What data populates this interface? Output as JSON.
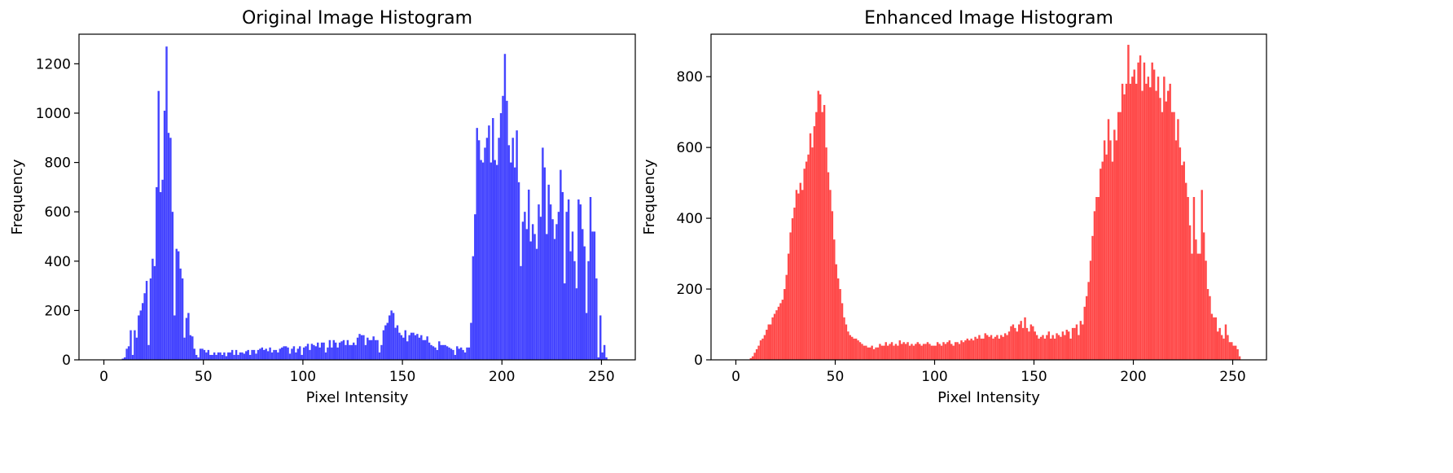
{
  "chart_data": [
    {
      "type": "bar",
      "title": "Original Image Histogram",
      "xlabel": "Pixel Intensity",
      "ylabel": "Frequency",
      "xlim": [
        -12.5,
        267
      ],
      "ylim": [
        0,
        1320
      ],
      "xticks": [
        0,
        50,
        100,
        150,
        200,
        250
      ],
      "yticks": [
        0,
        200,
        400,
        600,
        800,
        1000,
        1200
      ],
      "grid": false,
      "color": "#4444ff",
      "series": [
        {
          "x_start": 0,
          "values": [
            0,
            0,
            0,
            0,
            0,
            0,
            0,
            0,
            0,
            5,
            10,
            45,
            55,
            120,
            20,
            120,
            90,
            180,
            200,
            230,
            270,
            320,
            60,
            330,
            410,
            380,
            700,
            1090,
            680,
            730,
            1010,
            1270,
            920,
            900,
            600,
            180,
            450,
            440,
            370,
            330,
            90,
            170,
            190,
            100,
            95,
            45,
            20,
            10,
            45,
            45,
            40,
            30,
            40,
            20,
            20,
            30,
            20,
            30,
            30,
            20,
            30,
            15,
            30,
            30,
            40,
            20,
            40,
            20,
            30,
            30,
            25,
            35,
            40,
            20,
            40,
            40,
            25,
            40,
            45,
            50,
            40,
            45,
            35,
            50,
            30,
            40,
            40,
            30,
            45,
            50,
            55,
            55,
            50,
            25,
            45,
            55,
            30,
            45,
            55,
            20,
            50,
            55,
            65,
            40,
            65,
            60,
            55,
            70,
            50,
            70,
            70,
            30,
            50,
            80,
            50,
            80,
            70,
            50,
            70,
            75,
            80,
            60,
            80,
            60,
            60,
            70,
            60,
            90,
            105,
            100,
            100,
            60,
            90,
            80,
            80,
            95,
            80,
            80,
            30,
            60,
            120,
            140,
            150,
            180,
            200,
            190,
            130,
            140,
            110,
            100,
            90,
            120,
            75,
            100,
            110,
            110,
            100,
            105,
            90,
            100,
            80,
            80,
            95,
            70,
            60,
            55,
            50,
            40,
            75,
            60,
            60,
            60,
            55,
            50,
            45,
            40,
            20,
            55,
            45,
            50,
            40,
            30,
            50,
            50,
            150,
            420,
            590,
            940,
            890,
            810,
            800,
            860,
            900,
            950,
            800,
            980,
            810,
            790,
            900,
            1000,
            1070,
            1240,
            1050,
            870,
            800,
            900,
            780,
            930,
            720,
            380,
            560,
            600,
            530,
            690,
            480,
            550,
            510,
            450,
            630,
            580,
            860,
            780,
            510,
            710,
            630,
            570,
            490,
            550,
            600,
            770,
            680,
            310,
            600,
            650,
            440,
            520,
            400,
            290,
            650,
            630,
            530,
            460,
            190,
            400,
            660,
            520,
            520,
            330,
            10,
            180,
            30,
            60,
            10,
            0,
            0,
            0,
            0,
            0,
            0,
            0,
            0,
            0,
            0,
            0,
            0,
            0,
            0,
            0,
            0,
            0
          ]
        }
      ]
    },
    {
      "type": "bar",
      "title": "Enhanced Image Histogram",
      "xlabel": "Pixel Intensity",
      "ylabel": "Frequency",
      "xlim": [
        -12.5,
        267
      ],
      "ylim": [
        0,
        920
      ],
      "xticks": [
        0,
        50,
        100,
        150,
        200,
        250
      ],
      "yticks": [
        0,
        200,
        400,
        600,
        800
      ],
      "grid": false,
      "color": "#ff4a4a",
      "series": [
        {
          "x_start": 0,
          "values": [
            0,
            0,
            0,
            0,
            0,
            0,
            0,
            5,
            10,
            20,
            30,
            40,
            55,
            60,
            70,
            85,
            100,
            100,
            120,
            130,
            140,
            150,
            160,
            170,
            200,
            240,
            300,
            360,
            400,
            430,
            480,
            470,
            500,
            480,
            540,
            560,
            580,
            640,
            600,
            660,
            700,
            760,
            750,
            700,
            720,
            600,
            530,
            480,
            420,
            340,
            270,
            230,
            200,
            160,
            120,
            100,
            80,
            70,
            65,
            60,
            60,
            55,
            50,
            45,
            40,
            40,
            35,
            35,
            40,
            30,
            35,
            35,
            45,
            40,
            40,
            50,
            40,
            45,
            50,
            40,
            45,
            40,
            55,
            45,
            50,
            45,
            50,
            40,
            45,
            40,
            45,
            50,
            45,
            40,
            45,
            45,
            50,
            45,
            40,
            40,
            40,
            50,
            45,
            40,
            50,
            45,
            50,
            55,
            45,
            40,
            50,
            50,
            45,
            55,
            50,
            55,
            60,
            55,
            60,
            55,
            65,
            60,
            70,
            60,
            60,
            75,
            70,
            65,
            70,
            60,
            65,
            70,
            60,
            70,
            65,
            75,
            70,
            80,
            95,
            100,
            90,
            80,
            100,
            110,
            90,
            120,
            90,
            80,
            100,
            95,
            80,
            70,
            60,
            65,
            70,
            60,
            70,
            80,
            60,
            70,
            60,
            75,
            70,
            65,
            80,
            70,
            85,
            80,
            60,
            90,
            90,
            100,
            70,
            110,
            100,
            150,
            180,
            220,
            280,
            350,
            420,
            460,
            460,
            540,
            560,
            620,
            580,
            680,
            620,
            560,
            650,
            620,
            700,
            700,
            780,
            750,
            780,
            890,
            780,
            800,
            820,
            780,
            840,
            860,
            760,
            840,
            780,
            800,
            770,
            840,
            820,
            760,
            800,
            740,
            700,
            800,
            730,
            760,
            780,
            700,
            700,
            620,
            680,
            600,
            550,
            560,
            500,
            460,
            380,
            300,
            460,
            340,
            300,
            300,
            480,
            360,
            280,
            200,
            180,
            130,
            120,
            120,
            80,
            90,
            70,
            60,
            100,
            70,
            50,
            50,
            40,
            40,
            30,
            10,
            0,
            0,
            0,
            0,
            0,
            0,
            0,
            0
          ]
        }
      ]
    }
  ]
}
